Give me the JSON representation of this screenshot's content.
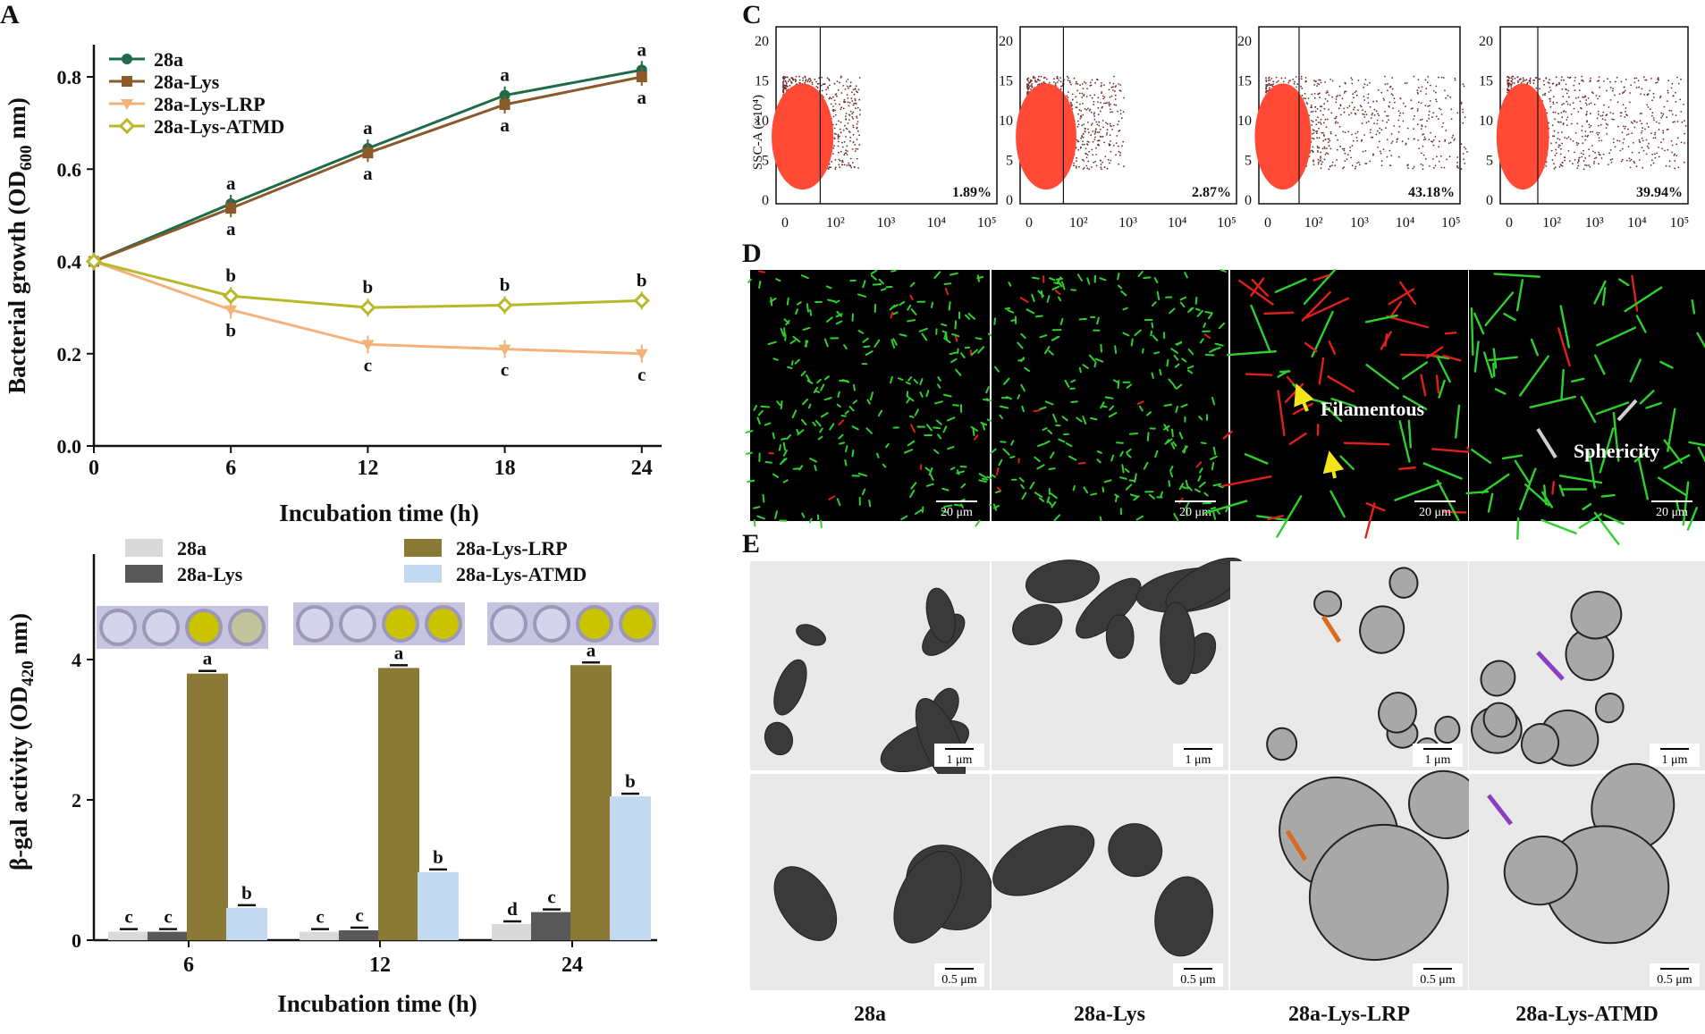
{
  "figure": {
    "panel_labels": {
      "A": "A",
      "C": "C",
      "D": "D",
      "E": "E"
    },
    "colors": {
      "c28a": "#1e6b4a",
      "c28aLys": "#8b5a2b",
      "cLRP": "#f2b27a",
      "cATMD": "#b8b82a",
      "b28a": "#d9d9d9",
      "b28aLys": "#595959",
      "bLRP": "#8b7a35",
      "bATMD": "#c2d9f0"
    }
  },
  "chart_data": [
    {
      "type": "line",
      "xlabel": "Incubation time (h)",
      "ylabel": "Bacterial growth (OD600 nm)",
      "ylabel_parts": {
        "pre": "Bacterial growth (OD",
        "sub": "600",
        "post": " nm)"
      },
      "x": [
        0,
        6,
        12,
        18,
        24
      ],
      "xticks": [
        "0",
        "6",
        "12",
        "18",
        "24"
      ],
      "yticks": [
        "0.0",
        "0.2",
        "0.4",
        "0.6",
        "0.8"
      ],
      "ylim": [
        0,
        0.85
      ],
      "series": [
        {
          "name": "28a",
          "values": [
            0.4,
            0.525,
            0.645,
            0.76,
            0.815
          ],
          "letters": [
            "",
            "a",
            "a",
            "a",
            "a"
          ],
          "letter_pos": "above",
          "color": "#1e6b4a",
          "marker": "circle"
        },
        {
          "name": "28a-Lys",
          "values": [
            0.4,
            0.515,
            0.635,
            0.74,
            0.8
          ],
          "letters": [
            "",
            "a",
            "a",
            "a",
            "a"
          ],
          "letter_pos": "below",
          "color": "#8b5a2b",
          "marker": "square"
        },
        {
          "name": "28a-Lys-LRP",
          "values": [
            0.4,
            0.295,
            0.22,
            0.21,
            0.2
          ],
          "letters": [
            "",
            "b",
            "c",
            "c",
            "c"
          ],
          "letter_pos": "below",
          "color": "#f2b27a",
          "marker": "triangle"
        },
        {
          "name": "28a-Lys-ATMD",
          "values": [
            0.4,
            0.325,
            0.3,
            0.305,
            0.315
          ],
          "letters": [
            "",
            "b",
            "b",
            "b",
            "b"
          ],
          "letter_pos": "above",
          "color": "#b8b82a",
          "marker": "diamond"
        }
      ]
    },
    {
      "type": "bar",
      "xlabel": "Incubation time (h)",
      "ylabel": "β-gal activity (OD420 nm)",
      "ylabel_parts": {
        "pre": "β-gal activity (OD",
        "sub": "420",
        "post": " nm)"
      },
      "categories": [
        "6",
        "12",
        "24"
      ],
      "yticks": [
        "0",
        "2",
        "4"
      ],
      "ylim": [
        0,
        5.5
      ],
      "series": [
        {
          "name": "28a",
          "values": [
            0.12,
            0.12,
            0.23
          ],
          "letters": [
            "c",
            "c",
            "d"
          ],
          "color": "#d9d9d9"
        },
        {
          "name": "28a-Lys",
          "values": [
            0.12,
            0.14,
            0.4
          ],
          "letters": [
            "c",
            "c",
            "c"
          ],
          "color": "#595959"
        },
        {
          "name": "28a-Lys-LRP",
          "values": [
            3.8,
            3.88,
            3.92
          ],
          "letters": [
            "a",
            "a",
            "a"
          ],
          "color": "#8b7a35"
        },
        {
          "name": "28a-Lys-ATMD",
          "values": [
            0.46,
            0.97,
            2.05
          ],
          "letters": [
            "b",
            "b",
            "b"
          ],
          "color": "#c2d9f0"
        }
      ]
    }
  ],
  "flow": {
    "ylabel": "SSC-A (×10⁴)",
    "yticks": [
      "0",
      "5",
      "10",
      "15",
      "20"
    ],
    "xticks": [
      "0",
      "10²",
      "10³",
      "10⁴",
      "10⁵"
    ],
    "percents": [
      "1.89%",
      "2.87%",
      "43.18%",
      "39.94%"
    ]
  },
  "micro": {
    "d_scale": "20 μm",
    "filamentous": "Filamentous",
    "sphericity": "Sphericity",
    "e_scale_top": "1 μm",
    "e_scale_bottom": "0.5 μm",
    "columns": [
      "28a",
      "28a-Lys",
      "28a-Lys-LRP",
      "28a-Lys-ATMD"
    ]
  }
}
